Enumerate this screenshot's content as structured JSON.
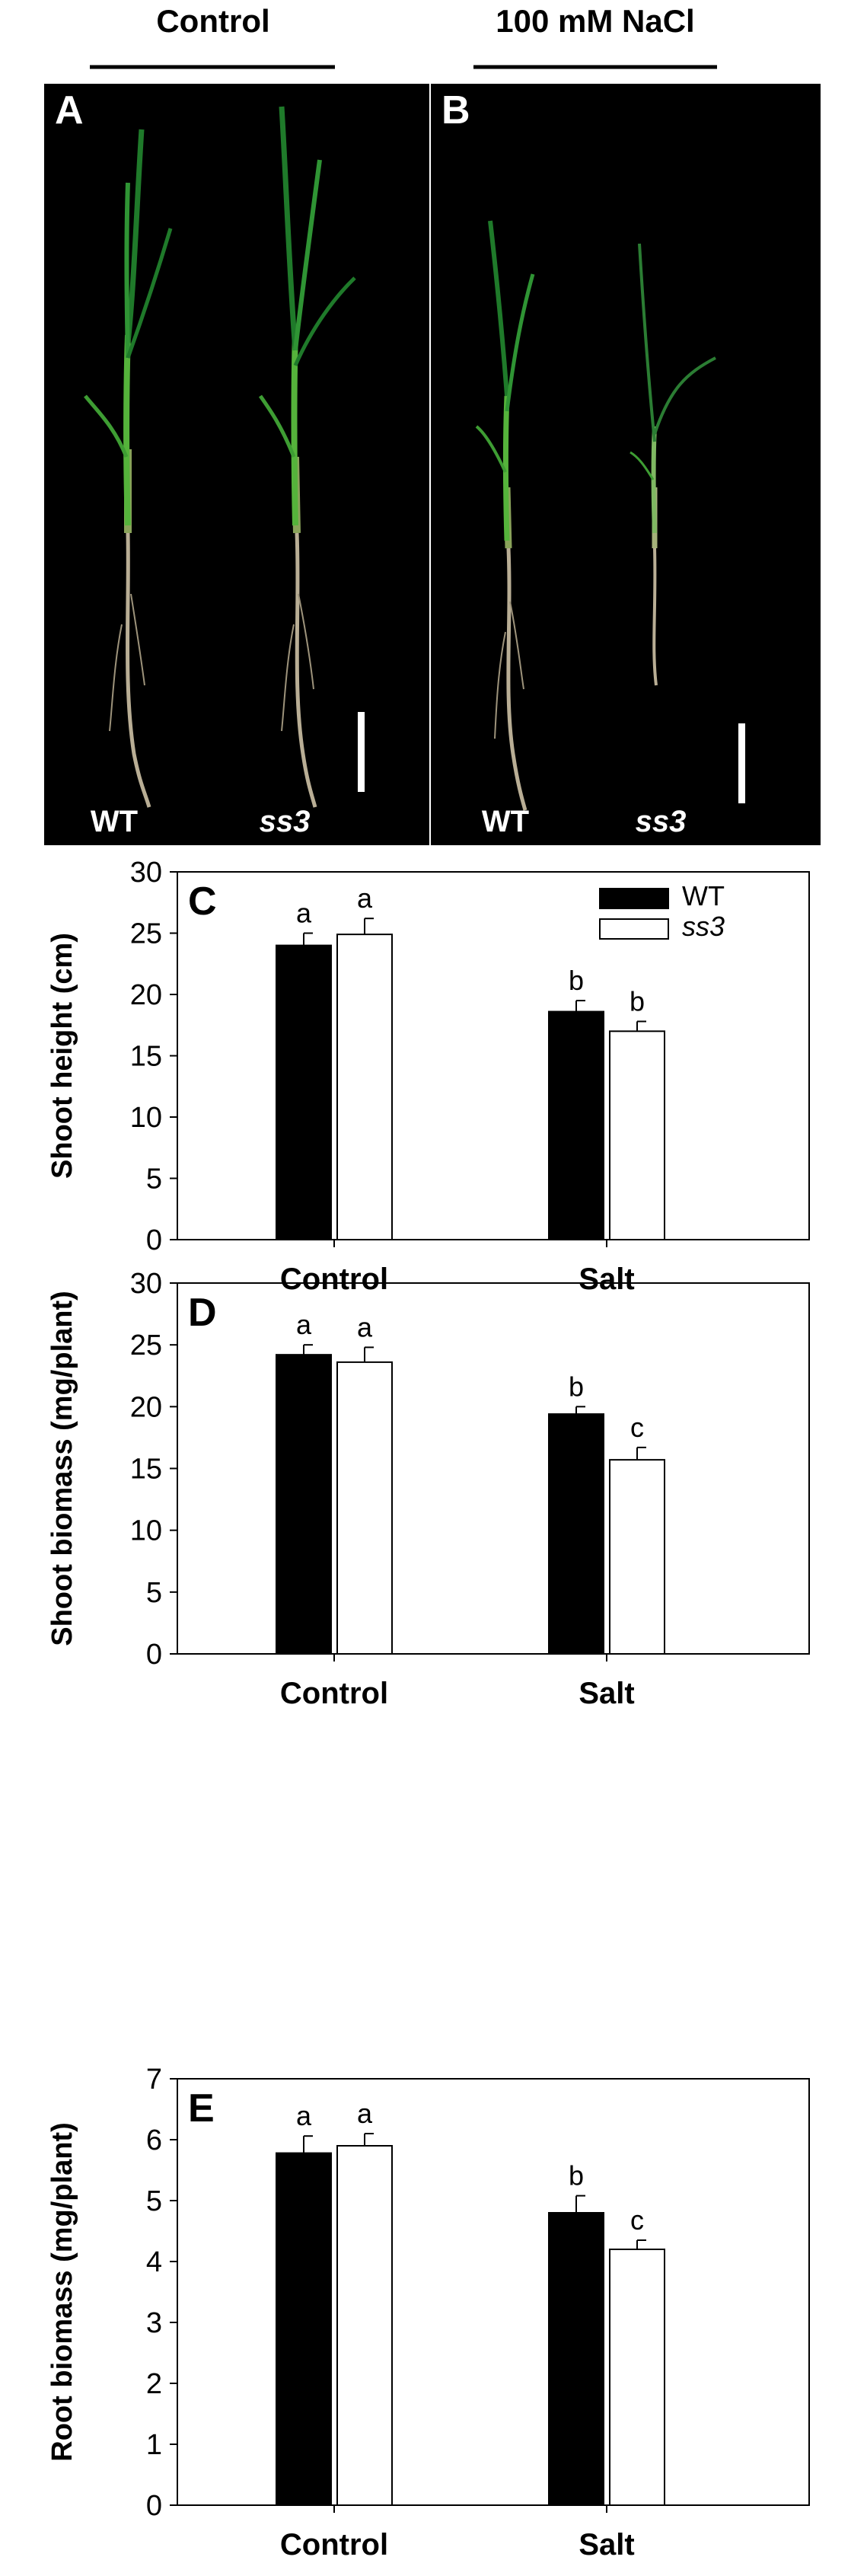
{
  "colors": {
    "photo_background": "#000000",
    "leaf_dark": "#1f7a2a",
    "leaf_light": "#7ed64a",
    "root": "#b9ae95",
    "wt_bar": "#000000",
    "ss3_bar": "#ffffff",
    "axis": "#000000",
    "label_white": "#ffffff"
  },
  "header": {
    "control_label": "Control",
    "salt_label": "100 mM NaCl"
  },
  "photo_panels": [
    {
      "letter": "A",
      "left_plant": "WT",
      "right_plant": "ss3"
    },
    {
      "letter": "B",
      "left_plant": "WT",
      "right_plant": "ss3"
    }
  ],
  "chart_data": [
    {
      "type": "bar",
      "panel": "C",
      "ylabel": "Shoot height (cm)",
      "categories": [
        "Control",
        "Salt"
      ],
      "ylim": [
        0,
        30
      ],
      "yticks": [
        0,
        5,
        10,
        15,
        20,
        25,
        30
      ],
      "legend": {
        "position": "top-right",
        "entries": [
          "WT",
          "ss3"
        ]
      },
      "series": [
        {
          "name": "WT",
          "values": [
            24.0,
            18.6
          ],
          "errors": [
            1.0,
            0.9
          ],
          "letters": [
            "a",
            "b"
          ]
        },
        {
          "name": "ss3",
          "values": [
            24.9,
            17.0
          ],
          "errors": [
            1.3,
            0.8
          ],
          "letters": [
            "a",
            "b"
          ]
        }
      ]
    },
    {
      "type": "bar",
      "panel": "D",
      "ylabel": "Shoot biomass (mg/plant)",
      "categories": [
        "Control",
        "Salt"
      ],
      "ylim": [
        0,
        30
      ],
      "yticks": [
        0,
        5,
        10,
        15,
        20,
        25,
        30
      ],
      "series": [
        {
          "name": "WT",
          "values": [
            24.2,
            19.4
          ],
          "errors": [
            0.8,
            0.6
          ],
          "letters": [
            "a",
            "b"
          ]
        },
        {
          "name": "ss3",
          "values": [
            23.6,
            15.7
          ],
          "errors": [
            1.2,
            1.0
          ],
          "letters": [
            "a",
            "c"
          ]
        }
      ]
    },
    {
      "type": "bar",
      "panel": "E",
      "ylabel": "Root biomass (mg/plant)",
      "categories": [
        "Control",
        "Salt"
      ],
      "ylim": [
        0,
        7
      ],
      "yticks": [
        0,
        1,
        2,
        3,
        4,
        5,
        6,
        7
      ],
      "series": [
        {
          "name": "WT",
          "values": [
            5.78,
            4.8
          ],
          "errors": [
            0.28,
            0.28
          ],
          "letters": [
            "a",
            "b"
          ]
        },
        {
          "name": "ss3",
          "values": [
            5.9,
            4.2
          ],
          "errors": [
            0.2,
            0.15
          ],
          "letters": [
            "a",
            "c"
          ]
        }
      ]
    }
  ]
}
